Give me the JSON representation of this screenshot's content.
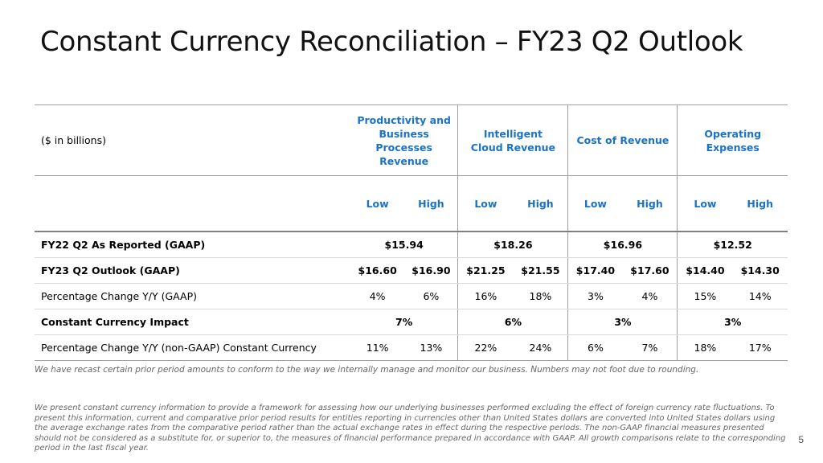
{
  "title": "Constant Currency Reconciliation – FY23 Q2 Outlook",
  "units": "($ in billions)",
  "columns": [
    {
      "label": "Productivity and Business Processes Revenue"
    },
    {
      "label": "Intelligent Cloud Revenue"
    },
    {
      "label": "Cost of Revenue"
    },
    {
      "label": "Operating Expenses"
    }
  ],
  "low_label": "Low",
  "high_label": "High",
  "rows": {
    "reported": {
      "label": "FY22 Q2 As Reported (GAAP)",
      "values": [
        "$15.94",
        "$18.26",
        "$16.96",
        "$12.52"
      ]
    },
    "outlook": {
      "label": "FY23 Q2 Outlook (GAAP)",
      "values": [
        "$16.60",
        "$16.90",
        "$21.25",
        "$21.55",
        "$17.40",
        "$17.60",
        "$14.40",
        "$14.30"
      ]
    },
    "pct_gaap": {
      "label": "Percentage Change Y/Y (GAAP)",
      "values": [
        "4%",
        "6%",
        "16%",
        "18%",
        "3%",
        "4%",
        "15%",
        "14%"
      ]
    },
    "cc_impact": {
      "label": "Constant Currency Impact",
      "values": [
        "7%",
        "6%",
        "3%",
        "3%"
      ]
    },
    "pct_cc": {
      "label": "Percentage Change Y/Y (non-GAAP) Constant Currency",
      "values": [
        "11%",
        "13%",
        "22%",
        "24%",
        "6%",
        "7%",
        "18%",
        "17%"
      ]
    }
  },
  "footnote1": "We have recast certain prior period amounts to conform to the way we internally manage and monitor our business. Numbers may not foot due to rounding.",
  "footnote2": "We present constant currency information to provide a framework for assessing how our underlying businesses performed excluding the effect of foreign currency rate fluctuations. To present this information, current and comparative prior period results for entities reporting in currencies other than United States dollars are converted into United States dollars using the average exchange rates from the comparative period rather than the actual exchange rates in effect during the respective periods. The non-GAAP financial measures presented should not be considered as a substitute for, or superior to, the measures of financial performance prepared in accordance with GAAP. All growth comparisons relate to the corresponding period in the last fiscal year.",
  "page_number": "5"
}
